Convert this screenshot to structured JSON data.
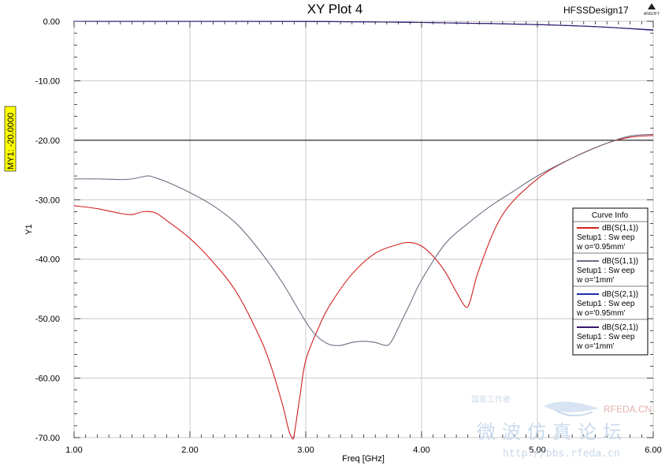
{
  "header": {
    "title": "XY Plot 4",
    "design_name": "HFSSDesign17",
    "logo_text": "ANSOFT"
  },
  "marker": {
    "label": "MY1: -20.0000",
    "value": -20
  },
  "legend": {
    "title": "Curve Info"
  },
  "watermark": {
    "site": "RFEDA.CN",
    "chinese": "微波仿真论坛",
    "url": "http://bbs.rfeda.cn",
    "tagline": "国家工作者"
  },
  "chart_data": {
    "type": "line",
    "title": "XY Plot 4",
    "xlabel": "Freq [GHz]",
    "ylabel": "Y1",
    "xlim": [
      1.0,
      6.0
    ],
    "ylim": [
      -70.0,
      0.0
    ],
    "xticks": [
      1.0,
      2.0,
      3.0,
      4.0,
      5.0,
      6.0
    ],
    "xtick_labels": [
      "1.00",
      "2.00",
      "3.00",
      "4.00",
      "5.00",
      "6.00"
    ],
    "yticks": [
      0,
      -10,
      -20,
      -30,
      -40,
      -50,
      -60,
      -70
    ],
    "ytick_labels": [
      "0.00",
      "-10.00",
      "-20.00",
      "-30.00",
      "-40.00",
      "-50.00",
      "-60.00",
      "-70.00"
    ],
    "grid": true,
    "legend_position": "right",
    "series": [
      {
        "name": "dB(S(1,1))",
        "setup": "Setup1 : Sw eep",
        "param": "w o='0.95mm'",
        "color": "#d11f1f",
        "x": [
          1.0,
          1.2,
          1.4,
          1.5,
          1.6,
          1.7,
          1.8,
          2.0,
          2.2,
          2.4,
          2.6,
          2.7,
          2.8,
          2.85,
          2.88,
          2.9,
          2.95,
          3.0,
          3.1,
          3.2,
          3.4,
          3.6,
          3.8,
          3.9,
          4.0,
          4.1,
          4.2,
          4.3,
          4.38,
          4.42,
          4.5,
          4.7,
          5.0,
          5.3,
          5.6,
          5.8,
          6.0
        ],
        "y": [
          -31.0,
          -31.5,
          -32.3,
          -32.5,
          -32.0,
          -32.2,
          -33.5,
          -36.5,
          -40.5,
          -45.5,
          -53.0,
          -58.0,
          -64.5,
          -68.5,
          -70.0,
          -69.5,
          -63.0,
          -57.0,
          -52.0,
          -48.0,
          -42.5,
          -39.0,
          -37.5,
          -37.2,
          -37.8,
          -39.5,
          -42.0,
          -45.5,
          -48.0,
          -47.0,
          -41.5,
          -32.5,
          -26.5,
          -23.0,
          -20.5,
          -19.5,
          -19.2
        ]
      },
      {
        "name": "dB(S(1,1))",
        "setup": "Setup1 : Sw eep",
        "param": "w o='1mm'",
        "color": "#6e6e85",
        "x": [
          1.0,
          1.2,
          1.4,
          1.5,
          1.6,
          1.65,
          1.7,
          1.8,
          2.0,
          2.2,
          2.4,
          2.6,
          2.8,
          3.0,
          3.1,
          3.2,
          3.3,
          3.4,
          3.5,
          3.6,
          3.7,
          3.75,
          3.8,
          3.9,
          4.0,
          4.2,
          4.4,
          4.6,
          4.8,
          5.0,
          5.3,
          5.6,
          5.8,
          6.0
        ],
        "y": [
          -26.5,
          -26.5,
          -26.6,
          -26.5,
          -26.1,
          -26.0,
          -26.3,
          -27.0,
          -28.8,
          -31.0,
          -34.0,
          -38.5,
          -44.0,
          -50.5,
          -53.0,
          -54.3,
          -54.5,
          -54.0,
          -53.8,
          -54.0,
          -54.5,
          -53.5,
          -51.5,
          -47.5,
          -43.5,
          -37.5,
          -34.0,
          -31.0,
          -28.5,
          -26.0,
          -23.0,
          -20.5,
          -19.3,
          -19.0
        ]
      },
      {
        "name": "dB(S(2,1))",
        "setup": "Setup1 : Sw eep",
        "param": "w o='0.95mm'",
        "color": "#1f2fa8",
        "x": [
          1.0,
          2.0,
          3.0,
          3.5,
          4.0,
          4.5,
          5.0,
          5.5,
          6.0
        ],
        "y": [
          0.0,
          -0.01,
          -0.03,
          -0.1,
          -0.2,
          -0.35,
          -0.55,
          -0.9,
          -1.5
        ]
      },
      {
        "name": "dB(S(2,1))",
        "setup": "Setup1 : Sw eep",
        "param": "w o='1mm'",
        "color": "#3a1a6e",
        "x": [
          1.0,
          2.0,
          3.0,
          3.5,
          4.0,
          4.5,
          5.0,
          5.5,
          6.0
        ],
        "y": [
          0.0,
          -0.01,
          -0.03,
          -0.1,
          -0.2,
          -0.35,
          -0.55,
          -0.9,
          -1.45
        ]
      }
    ]
  }
}
